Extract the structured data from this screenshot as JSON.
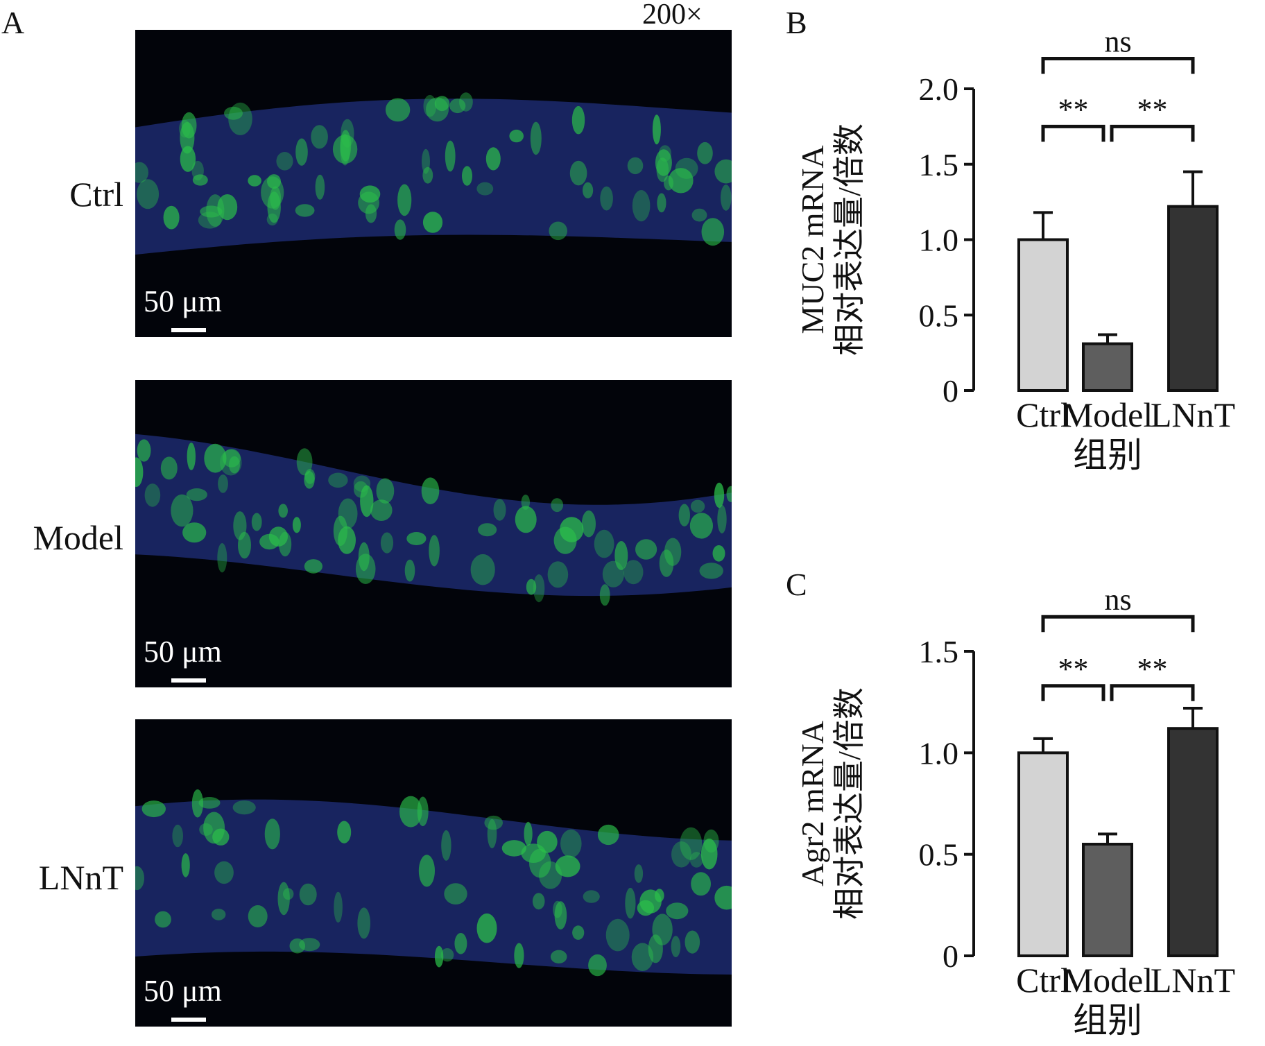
{
  "panel_a": {
    "letter": "A",
    "magnification": "200×",
    "images": [
      {
        "label": "Ctrl",
        "scale_bar": "50 μm"
      },
      {
        "label": "Model",
        "scale_bar": "50 μm"
      },
      {
        "label": "LNnT",
        "scale_bar": "50 μm"
      }
    ],
    "colors": {
      "background": "#02040a",
      "tissue": "#1c2a6e",
      "stain": "#2bbf4a"
    }
  },
  "chart_data": [
    {
      "panel": "B",
      "type": "bar",
      "categories": [
        "Ctrl",
        "Model",
        "LNnT"
      ],
      "values": [
        1.0,
        0.31,
        1.22
      ],
      "errors": [
        0.18,
        0.06,
        0.23
      ],
      "colors": [
        "#d3d3d3",
        "#5e5e5e",
        "#333333"
      ],
      "ylabel_line1": "MUC2 mRNA",
      "ylabel_line2": "相对表达量/倍数",
      "xlabel": "组别",
      "ylim": [
        0,
        2.0
      ],
      "yticks": [
        "0",
        "0.5",
        "1.0",
        "1.5",
        "2.0"
      ],
      "ytick_values": [
        0,
        0.5,
        1.0,
        1.5,
        2.0
      ],
      "brackets": [
        {
          "from": 0,
          "to": 2,
          "label": "ns",
          "level": 2.2
        },
        {
          "from": 0,
          "to": 1,
          "label": "**",
          "level": 1.75
        },
        {
          "from": 1,
          "to": 2,
          "label": "**",
          "level": 1.75
        }
      ]
    },
    {
      "panel": "C",
      "type": "bar",
      "categories": [
        "Ctrl",
        "Model",
        "LNnT"
      ],
      "values": [
        1.0,
        0.55,
        1.12
      ],
      "errors": [
        0.07,
        0.05,
        0.1
      ],
      "colors": [
        "#d3d3d3",
        "#5e5e5e",
        "#333333"
      ],
      "ylabel_line1": "Agr2 mRNA",
      "ylabel_line2": "相对表达量/倍数",
      "xlabel": "组别",
      "ylim": [
        0,
        1.5
      ],
      "yticks": [
        "0",
        "0.5",
        "1.0",
        "1.5"
      ],
      "ytick_values": [
        0,
        0.5,
        1.0,
        1.5
      ],
      "brackets": [
        {
          "from": 0,
          "to": 2,
          "label": "ns",
          "level": 1.67
        },
        {
          "from": 0,
          "to": 1,
          "label": "**",
          "level": 1.33
        },
        {
          "from": 1,
          "to": 2,
          "label": "**",
          "level": 1.33
        }
      ]
    }
  ]
}
